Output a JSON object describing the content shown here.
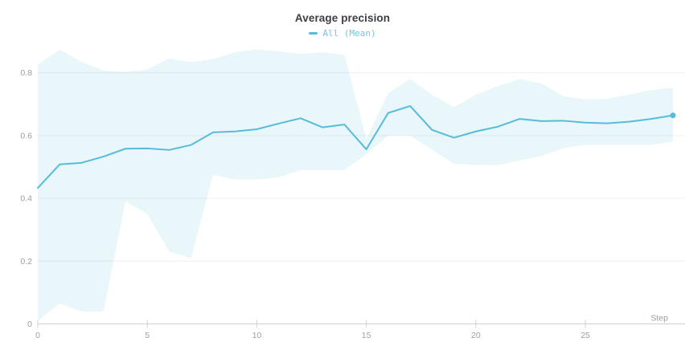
{
  "header": {
    "title": "Average precision",
    "legend_label": "All (Mean)"
  },
  "colors": {
    "line": "#56bcd9",
    "band_fill": "rgba(86,188,217,0.13)",
    "legend_text": "#74c3de",
    "axis_line": "#cdd1d4",
    "grid_line": "#eef1f2",
    "tick_text": "#9aa0a5"
  },
  "chart_data": {
    "type": "line",
    "title": "Average precision",
    "xlabel": "Step",
    "ylabel": "",
    "legend": [
      "All (Mean)"
    ],
    "legend_position": "top-center",
    "grid": "horizontal-only",
    "x": [
      0,
      1,
      2,
      3,
      4,
      5,
      6,
      7,
      8,
      9,
      10,
      11,
      12,
      13,
      14,
      15,
      16,
      17,
      18,
      19,
      20,
      21,
      22,
      23,
      24,
      25,
      26,
      27,
      28,
      29
    ],
    "series": [
      {
        "name": "All (Mean)",
        "values": [
          0.433,
          0.508,
          0.513,
          0.533,
          0.558,
          0.559,
          0.554,
          0.57,
          0.61,
          0.613,
          0.62,
          0.638,
          0.655,
          0.626,
          0.635,
          0.556,
          0.672,
          0.694,
          0.618,
          0.593,
          0.613,
          0.628,
          0.653,
          0.646,
          0.647,
          0.641,
          0.639,
          0.644,
          0.653,
          0.664
        ]
      }
    ],
    "band": {
      "name": "All (min/max range)",
      "upper": [
        0.826,
        0.873,
        0.834,
        0.807,
        0.802,
        0.81,
        0.845,
        0.834,
        0.843,
        0.865,
        0.874,
        0.868,
        0.86,
        0.865,
        0.857,
        0.59,
        0.735,
        0.78,
        0.73,
        0.69,
        0.73,
        0.757,
        0.78,
        0.766,
        0.725,
        0.715,
        0.717,
        0.73,
        0.745,
        0.752
      ],
      "lower": [
        0.01,
        0.065,
        0.04,
        0.04,
        0.39,
        0.35,
        0.23,
        0.21,
        0.475,
        0.46,
        0.46,
        0.467,
        0.49,
        0.49,
        0.49,
        0.54,
        0.6,
        0.6,
        0.555,
        0.51,
        0.506,
        0.506,
        0.52,
        0.535,
        0.56,
        0.57,
        0.57,
        0.57,
        0.57,
        0.58
      ]
    },
    "x_ticks": [
      0,
      5,
      10,
      15,
      20,
      25
    ],
    "x_tick_labels": [
      "0",
      "5",
      "10",
      "15",
      "20",
      "25"
    ],
    "y_ticks": [
      0,
      0.2,
      0.4,
      0.6,
      0.8
    ],
    "y_tick_labels": [
      "0",
      "0.2",
      "0.4",
      "0.6",
      "0.8"
    ],
    "xlim": [
      0,
      29.55
    ],
    "ylim": [
      0,
      0.891
    ],
    "end_marker": {
      "x": 29,
      "value": 0.664
    }
  }
}
